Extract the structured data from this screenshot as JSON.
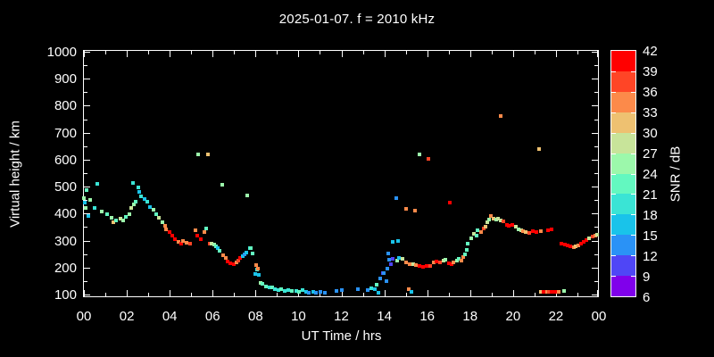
{
  "chart_data": {
    "type": "scatter",
    "title": "2025-01-07. f = 2010 kHz",
    "xlabel": "UT Time / hrs",
    "ylabel": "Virtual height / km",
    "xlim": [
      0,
      24
    ],
    "ylim": [
      90,
      1010
    ],
    "grid": false,
    "background": "#000000",
    "foreground": "#ffffff",
    "x_tick_hours": [
      0,
      2,
      4,
      6,
      8,
      10,
      12,
      14,
      16,
      18,
      20,
      22,
      24
    ],
    "x_tick_labels": [
      "00",
      "02",
      "04",
      "06",
      "08",
      "10",
      "12",
      "14",
      "16",
      "18",
      "20",
      "22",
      "00"
    ],
    "y_tick_km": [
      100,
      200,
      300,
      400,
      500,
      600,
      700,
      800,
      900,
      1000
    ],
    "colorbar": {
      "label": "SNR / dB",
      "range": [
        6,
        42
      ],
      "tick_values": [
        6,
        9,
        12,
        15,
        18,
        21,
        24,
        27,
        30,
        33,
        36,
        39,
        42
      ],
      "colors_low_to_high": [
        "#8000eb",
        "#4f46f6",
        "#2a92f6",
        "#19c3ea",
        "#3ae4d5",
        "#63f8c0",
        "#9cf8ab",
        "#c8e49a",
        "#eec171",
        "#fc8a4a",
        "#ff4526",
        "#ff0000"
      ]
    },
    "points_format": [
      "ut_hours",
      "virtual_height_km",
      "snr_db"
    ],
    "points": [
      [
        0.0,
        458,
        25
      ],
      [
        0.04,
        441,
        16
      ],
      [
        0.08,
        421,
        25
      ],
      [
        0.125,
        487,
        22
      ],
      [
        0.21,
        391,
        16
      ],
      [
        0.29,
        451,
        25
      ],
      [
        0.5,
        421,
        19
      ],
      [
        0.625,
        510,
        19
      ],
      [
        0.83,
        408,
        25
      ],
      [
        1.08,
        398,
        22
      ],
      [
        1.29,
        385,
        25
      ],
      [
        1.375,
        368,
        31
      ],
      [
        1.5,
        375,
        22
      ],
      [
        1.71,
        381,
        28
      ],
      [
        1.83,
        375,
        25
      ],
      [
        1.96,
        388,
        22
      ],
      [
        2.125,
        398,
        25
      ],
      [
        2.21,
        421,
        28
      ],
      [
        2.29,
        513,
        19
      ],
      [
        2.33,
        434,
        25
      ],
      [
        2.42,
        444,
        22
      ],
      [
        2.54,
        497,
        19
      ],
      [
        2.58,
        480,
        16
      ],
      [
        2.67,
        464,
        19
      ],
      [
        2.83,
        454,
        16
      ],
      [
        2.96,
        444,
        19
      ],
      [
        3.08,
        424,
        16
      ],
      [
        3.25,
        414,
        25
      ],
      [
        3.375,
        398,
        22
      ],
      [
        3.5,
        385,
        28
      ],
      [
        3.67,
        368,
        25
      ],
      [
        3.79,
        355,
        34
      ],
      [
        3.83,
        342,
        34
      ],
      [
        4.0,
        332,
        40
      ],
      [
        4.125,
        318,
        40
      ],
      [
        4.25,
        305,
        40
      ],
      [
        4.42,
        295,
        34
      ],
      [
        4.54,
        289,
        40
      ],
      [
        4.63,
        299,
        34
      ],
      [
        4.79,
        292,
        34
      ],
      [
        4.96,
        289,
        37
      ],
      [
        5.21,
        338,
        34
      ],
      [
        5.29,
        318,
        40
      ],
      [
        5.33,
        620,
        25
      ],
      [
        5.46,
        305,
        40
      ],
      [
        5.63,
        332,
        34
      ],
      [
        5.71,
        345,
        22
      ],
      [
        5.79,
        620,
        31
      ],
      [
        5.88,
        289,
        37
      ],
      [
        5.96,
        289,
        28
      ],
      [
        6.08,
        285,
        25
      ],
      [
        6.17,
        279,
        22
      ],
      [
        6.25,
        272,
        16
      ],
      [
        6.33,
        262,
        22
      ],
      [
        6.46,
        507,
        25
      ],
      [
        6.5,
        246,
        34
      ],
      [
        6.63,
        236,
        34
      ],
      [
        6.71,
        222,
        40
      ],
      [
        6.83,
        216,
        40
      ],
      [
        7.0,
        212,
        40
      ],
      [
        7.125,
        219,
        34
      ],
      [
        7.21,
        226,
        37
      ],
      [
        7.29,
        236,
        40
      ],
      [
        7.42,
        242,
        16
      ],
      [
        7.5,
        249,
        13
      ],
      [
        7.58,
        256,
        16
      ],
      [
        7.63,
        467,
        25
      ],
      [
        7.75,
        272,
        19
      ],
      [
        7.79,
        272,
        22
      ],
      [
        7.88,
        252,
        22
      ],
      [
        8.0,
        176,
        16
      ],
      [
        8.04,
        209,
        34
      ],
      [
        8.08,
        193,
        19
      ],
      [
        8.125,
        196,
        34
      ],
      [
        8.17,
        173,
        16
      ],
      [
        8.25,
        143,
        25
      ],
      [
        8.33,
        140,
        22
      ],
      [
        8.5,
        130,
        22
      ],
      [
        8.67,
        127,
        19
      ],
      [
        8.79,
        127,
        22
      ],
      [
        8.92,
        120,
        19
      ],
      [
        9.08,
        117,
        19
      ],
      [
        9.21,
        120,
        22
      ],
      [
        9.375,
        113,
        19
      ],
      [
        9.54,
        117,
        19
      ],
      [
        9.71,
        113,
        22
      ],
      [
        9.92,
        113,
        19
      ],
      [
        10.04,
        110,
        22
      ],
      [
        10.17,
        117,
        19
      ],
      [
        10.375,
        110,
        16
      ],
      [
        10.5,
        107,
        13
      ],
      [
        10.67,
        110,
        16
      ],
      [
        10.83,
        107,
        13
      ],
      [
        11.04,
        110,
        13
      ],
      [
        11.25,
        107,
        13
      ],
      [
        11.79,
        113,
        13
      ],
      [
        12.0,
        117,
        13
      ],
      [
        12.75,
        120,
        13
      ],
      [
        13.21,
        117,
        13
      ],
      [
        13.375,
        123,
        19
      ],
      [
        13.54,
        120,
        16
      ],
      [
        13.625,
        136,
        22
      ],
      [
        13.71,
        107,
        16
      ],
      [
        13.79,
        160,
        13
      ],
      [
        13.92,
        180,
        10
      ],
      [
        13.96,
        179,
        13
      ],
      [
        14.08,
        150,
        13
      ],
      [
        14.125,
        196,
        13
      ],
      [
        14.17,
        252,
        13
      ],
      [
        14.21,
        229,
        13
      ],
      [
        14.29,
        213,
        10
      ],
      [
        14.375,
        232,
        10
      ],
      [
        14.375,
        295,
        16
      ],
      [
        14.54,
        458,
        13
      ],
      [
        14.58,
        226,
        25
      ],
      [
        14.63,
        299,
        16
      ],
      [
        14.67,
        236,
        16
      ],
      [
        14.83,
        232,
        28
      ],
      [
        15.0,
        219,
        34
      ],
      [
        15.0,
        418,
        34
      ],
      [
        15.125,
        120,
        34
      ],
      [
        15.17,
        213,
        34
      ],
      [
        15.25,
        110,
        16
      ],
      [
        15.33,
        213,
        28
      ],
      [
        15.42,
        411,
        34
      ],
      [
        15.46,
        209,
        34
      ],
      [
        15.63,
        206,
        40
      ],
      [
        15.63,
        620,
        25
      ],
      [
        15.79,
        202,
        40
      ],
      [
        15.96,
        206,
        40
      ],
      [
        16.04,
        603,
        37
      ],
      [
        16.125,
        206,
        37
      ],
      [
        16.29,
        219,
        34
      ],
      [
        16.42,
        222,
        40
      ],
      [
        16.58,
        219,
        37
      ],
      [
        16.75,
        226,
        28
      ],
      [
        16.83,
        229,
        25
      ],
      [
        17.0,
        216,
        40
      ],
      [
        17.04,
        441,
        40
      ],
      [
        17.125,
        212,
        40
      ],
      [
        17.21,
        219,
        34
      ],
      [
        17.375,
        226,
        25
      ],
      [
        17.46,
        232,
        22
      ],
      [
        17.58,
        226,
        34
      ],
      [
        17.67,
        239,
        34
      ],
      [
        17.75,
        249,
        22
      ],
      [
        17.83,
        265,
        22
      ],
      [
        17.88,
        289,
        22
      ],
      [
        18.04,
        309,
        25
      ],
      [
        18.17,
        325,
        28
      ],
      [
        18.29,
        318,
        22
      ],
      [
        18.33,
        338,
        22
      ],
      [
        18.5,
        332,
        34
      ],
      [
        18.63,
        345,
        37
      ],
      [
        18.71,
        352,
        31
      ],
      [
        18.79,
        368,
        28
      ],
      [
        18.88,
        378,
        25
      ],
      [
        18.96,
        391,
        34
      ],
      [
        19.08,
        381,
        31
      ],
      [
        19.21,
        378,
        25
      ],
      [
        19.29,
        381,
        28
      ],
      [
        19.42,
        375,
        28
      ],
      [
        19.42,
        762,
        34
      ],
      [
        19.54,
        372,
        37
      ],
      [
        19.71,
        358,
        40
      ],
      [
        19.79,
        355,
        40
      ],
      [
        19.96,
        358,
        40
      ],
      [
        20.125,
        352,
        28
      ],
      [
        20.25,
        342,
        25
      ],
      [
        20.375,
        338,
        28
      ],
      [
        20.46,
        335,
        34
      ],
      [
        20.58,
        332,
        31
      ],
      [
        20.75,
        328,
        37
      ],
      [
        20.92,
        335,
        40
      ],
      [
        21.08,
        332,
        40
      ],
      [
        21.2,
        640,
        31
      ],
      [
        21.29,
        335,
        34
      ],
      [
        21.29,
        110,
        31
      ],
      [
        21.42,
        110,
        40
      ],
      [
        21.58,
        110,
        34
      ],
      [
        21.63,
        338,
        40
      ],
      [
        21.67,
        110,
        37
      ],
      [
        21.79,
        340,
        40
      ],
      [
        21.79,
        110,
        40
      ],
      [
        21.92,
        110,
        40
      ],
      [
        22.04,
        110,
        40
      ],
      [
        22.125,
        110,
        34
      ],
      [
        22.25,
        289,
        40
      ],
      [
        22.375,
        113,
        25
      ],
      [
        22.42,
        285,
        40
      ],
      [
        22.54,
        282,
        40
      ],
      [
        22.67,
        279,
        40
      ],
      [
        22.83,
        275,
        34
      ],
      [
        22.92,
        279,
        31
      ],
      [
        23.04,
        282,
        34
      ],
      [
        23.17,
        289,
        40
      ],
      [
        23.29,
        295,
        40
      ],
      [
        23.42,
        302,
        40
      ],
      [
        23.54,
        308,
        28
      ],
      [
        23.71,
        315,
        37
      ],
      [
        23.83,
        318,
        34
      ],
      [
        23.92,
        321,
        28
      ]
    ]
  }
}
